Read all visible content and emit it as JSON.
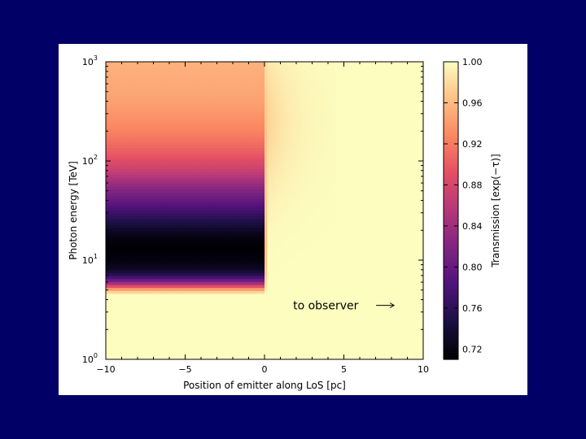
{
  "chart_data": {
    "type": "heatmap",
    "xlabel": "Position of emitter along LoS [pc]",
    "ylabel": "Photon energy [TeV]",
    "colorbar_label": "Transmission [exp(−τ)]",
    "x_range": [
      -10,
      10
    ],
    "y_range": [
      1,
      1000
    ],
    "y_scale": "log",
    "colormap": "magma",
    "x_ticks": [
      "−10",
      "−5",
      "0",
      "5",
      "10"
    ],
    "x_tick_values": [
      -10,
      -5,
      0,
      5,
      10
    ],
    "y_ticks": [
      {
        "base": "10",
        "exp": "0",
        "value": 1
      },
      {
        "base": "10",
        "exp": "1",
        "value": 10
      },
      {
        "base": "10",
        "exp": "2",
        "value": 100
      },
      {
        "base": "10",
        "exp": "3",
        "value": 1000
      }
    ],
    "colorbar_range": [
      0.71,
      1.0
    ],
    "colorbar_ticks": [
      "0.72",
      "0.76",
      "0.80",
      "0.84",
      "0.88",
      "0.92",
      "0.96",
      "1.00"
    ],
    "colorbar_tick_values": [
      0.72,
      0.76,
      0.8,
      0.84,
      0.88,
      0.92,
      0.96,
      1.0
    ],
    "transmission_profile": {
      "energy_TeV": [
        1,
        4.5,
        5.0,
        5.5,
        6,
        7,
        8,
        10,
        13,
        16,
        20,
        30,
        50,
        80,
        120,
        200,
        400,
        1000
      ],
      "min_transmission": [
        1.0,
        1.0,
        0.95,
        0.88,
        0.82,
        0.76,
        0.73,
        0.715,
        0.71,
        0.715,
        0.73,
        0.77,
        0.82,
        0.87,
        0.9,
        0.925,
        0.945,
        0.955
      ],
      "x_transition_pc": 0
    },
    "annotation": {
      "text": "to observer",
      "x": 1.8,
      "energy_TeV": 3.5,
      "arrow": true
    },
    "grid": false
  },
  "colors": {
    "slide_background": "#000066",
    "panel_background": "#ffffff"
  }
}
